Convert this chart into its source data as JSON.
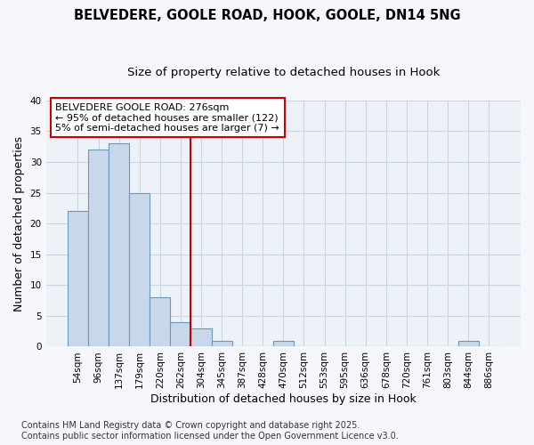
{
  "title1": "BELVEDERE, GOOLE ROAD, HOOK, GOOLE, DN14 5NG",
  "title2": "Size of property relative to detached houses in Hook",
  "xlabel": "Distribution of detached houses by size in Hook",
  "ylabel": "Number of detached properties",
  "categories": [
    "54sqm",
    "96sqm",
    "137sqm",
    "179sqm",
    "220sqm",
    "262sqm",
    "304sqm",
    "345sqm",
    "387sqm",
    "428sqm",
    "470sqm",
    "512sqm",
    "553sqm",
    "595sqm",
    "636sqm",
    "678sqm",
    "720sqm",
    "761sqm",
    "803sqm",
    "844sqm",
    "886sqm"
  ],
  "values": [
    22,
    32,
    33,
    25,
    8,
    4,
    3,
    1,
    0,
    0,
    1,
    0,
    0,
    0,
    0,
    0,
    0,
    0,
    0,
    1,
    0
  ],
  "bar_color": "#c8d8ea",
  "bar_edge_color": "#6699bb",
  "vline_x": 5.5,
  "vline_color": "#cc0000",
  "annotation_text": "BELVEDERE GOOLE ROAD: 276sqm\n← 95% of detached houses are smaller (122)\n5% of semi-detached houses are larger (7) →",
  "annotation_box_color": "#ffffff",
  "annotation_box_edge_color": "#cc0000",
  "ylim": [
    0,
    40
  ],
  "yticks": [
    0,
    5,
    10,
    15,
    20,
    25,
    30,
    35,
    40
  ],
  "background_color": "#f5f7fa",
  "plot_bg_color": "#edf2f8",
  "grid_color": "#c8d4e0",
  "footer_text": "Contains HM Land Registry data © Crown copyright and database right 2025.\nContains public sector information licensed under the Open Government Licence v3.0.",
  "title_fontsize": 10.5,
  "subtitle_fontsize": 9.5,
  "axis_label_fontsize": 9,
  "tick_fontsize": 7.5,
  "annotation_fontsize": 8,
  "footer_fontsize": 7
}
